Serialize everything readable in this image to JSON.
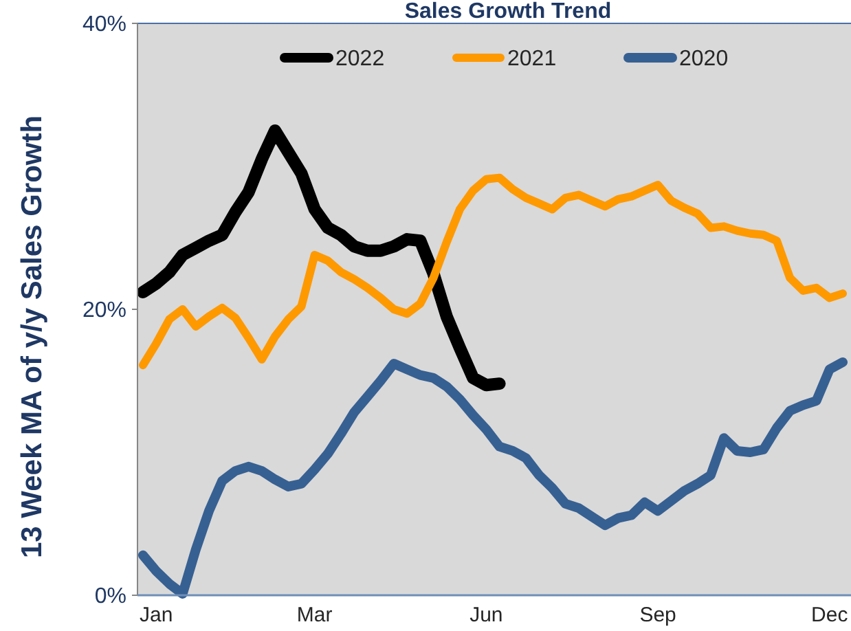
{
  "chart_data": {
    "type": "line",
    "title": "Sales Growth Trend",
    "ylabel": "13 Week MA of y/y Sales Growth",
    "categories": [
      null,
      "Jan",
      null,
      null,
      null,
      null,
      null,
      null,
      null,
      null,
      null,
      null,
      null,
      "Mar",
      null,
      null,
      null,
      null,
      null,
      null,
      null,
      null,
      null,
      null,
      null,
      null,
      "Jun",
      null,
      null,
      null,
      null,
      null,
      null,
      null,
      null,
      null,
      null,
      null,
      null,
      "Sep",
      null,
      null,
      null,
      null,
      null,
      null,
      null,
      null,
      null,
      null,
      null,
      null,
      "Dec",
      null
    ],
    "series": [
      {
        "name": "2022",
        "color": "#000000",
        "values": [
          21.2,
          21.8,
          22.6,
          23.8,
          24.3,
          24.8,
          25.2,
          26.8,
          28.2,
          30.5,
          32.5,
          31.0,
          29.5,
          27.0,
          25.7,
          25.2,
          24.4,
          24.1,
          24.1,
          24.4,
          24.9,
          24.8,
          22.5,
          19.5,
          17.3,
          15.2,
          14.7,
          14.8,
          null,
          null,
          null,
          null,
          null,
          null,
          null,
          null,
          null,
          null,
          null,
          null,
          null,
          null,
          null,
          null,
          null,
          null,
          null,
          null,
          null,
          null,
          null,
          null,
          null,
          null
        ]
      },
      {
        "name": "2021",
        "color": "#ff9900",
        "values": [
          16.1,
          17.6,
          19.3,
          20.0,
          18.8,
          19.5,
          20.1,
          19.4,
          18.0,
          16.5,
          18.1,
          19.3,
          20.2,
          23.8,
          23.4,
          22.6,
          22.1,
          21.5,
          20.8,
          20.0,
          19.7,
          20.4,
          22.2,
          24.7,
          27.0,
          28.3,
          29.1,
          29.2,
          28.4,
          27.8,
          27.4,
          27.0,
          27.8,
          28.0,
          27.6,
          27.2,
          27.7,
          27.9,
          28.3,
          28.7,
          27.6,
          27.1,
          26.7,
          25.7,
          25.8,
          25.5,
          25.3,
          25.2,
          24.8,
          22.2,
          21.3,
          21.5,
          20.8,
          21.1
        ]
      },
      {
        "name": "2020",
        "color": "#376092",
        "values": [
          2.8,
          1.7,
          0.8,
          0.1,
          3.2,
          5.9,
          8.0,
          8.7,
          9.0,
          8.7,
          8.1,
          7.6,
          7.8,
          8.8,
          9.9,
          11.3,
          12.8,
          13.9,
          15.0,
          16.2,
          15.8,
          15.4,
          15.2,
          14.6,
          13.7,
          12.6,
          11.6,
          10.4,
          10.1,
          9.6,
          8.4,
          7.5,
          6.4,
          6.1,
          5.5,
          4.9,
          5.4,
          5.6,
          6.5,
          5.9,
          6.6,
          7.3,
          7.8,
          8.4,
          11.0,
          10.1,
          10.0,
          10.2,
          11.7,
          12.9,
          13.3,
          13.6,
          15.8,
          16.3
        ]
      }
    ],
    "ylim": [
      0,
      40
    ],
    "yticks": [
      {
        "value": 0,
        "label": "0%"
      },
      {
        "value": 20,
        "label": "20%"
      },
      {
        "value": 40,
        "label": "40%"
      }
    ],
    "legend": "top",
    "line_style": "solid"
  }
}
